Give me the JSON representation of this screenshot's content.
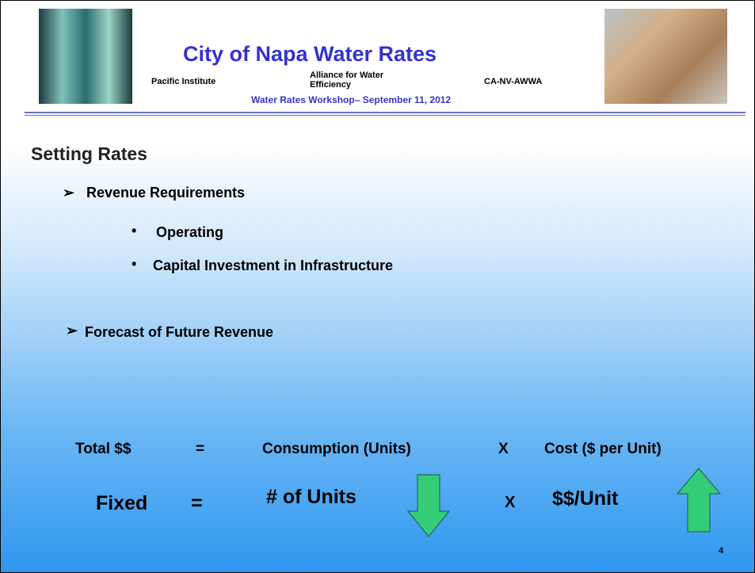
{
  "header": {
    "title": "City of Napa Water Rates",
    "org_left": "Pacific Institute",
    "org_center": "Alliance for Water Efficiency",
    "org_right": "CA-NV-AWWA",
    "subtitle": "Water Rates Workshop– September 11, 2012"
  },
  "body": {
    "heading": "Setting Rates",
    "items": [
      {
        "text": "Revenue Requirements",
        "subitems": [
          "Operating",
          "Capital Investment in Infrastructure"
        ]
      },
      {
        "text": "Forecast of Future Revenue",
        "subitems": []
      }
    ]
  },
  "equation1": {
    "lhs": "Total $$",
    "eq": "=",
    "a": "Consumption (Units)",
    "op": "X",
    "b": "Cost ($ per Unit)"
  },
  "equation2": {
    "lhs": "Fixed",
    "eq": "=",
    "a": "# of Units",
    "op": "X",
    "b": "$$/Unit"
  },
  "page_number": "4"
}
